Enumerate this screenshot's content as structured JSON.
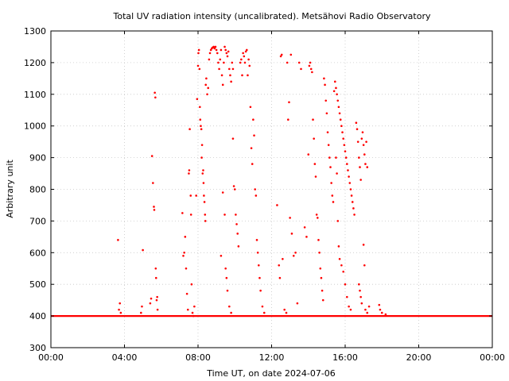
{
  "chart_data": {
    "type": "scatter",
    "title": "Total UV radiation intensity (uncalibrated). Metsähovi Radio Observatory",
    "xlabel": "Time UT, on date 2024-07-06",
    "ylabel": "Arbitrary unit",
    "xlim": [
      0,
      24
    ],
    "ylim": [
      300,
      1300
    ],
    "xticks": [
      0,
      4,
      8,
      12,
      16,
      20,
      24
    ],
    "xtick_labels": [
      "00:00",
      "04:00",
      "08:00",
      "12:00",
      "16:00",
      "20:00",
      "00:00"
    ],
    "yticks": [
      300,
      400,
      500,
      600,
      700,
      800,
      900,
      1000,
      1100,
      1200,
      1300
    ],
    "ytick_labels": [
      "300",
      "400",
      "500",
      "600",
      "700",
      "800",
      "900",
      "1000",
      "1100",
      "1200",
      "1300"
    ],
    "grid": true,
    "color": "#ff0000",
    "baseline": 400,
    "points": [
      [
        3.65,
        640
      ],
      [
        3.7,
        420
      ],
      [
        3.75,
        440
      ],
      [
        3.8,
        410
      ],
      [
        4.9,
        410
      ],
      [
        4.95,
        430
      ],
      [
        5.0,
        608
      ],
      [
        5.4,
        440
      ],
      [
        5.45,
        455
      ],
      [
        5.5,
        905
      ],
      [
        5.55,
        820
      ],
      [
        5.6,
        745
      ],
      [
        5.62,
        735
      ],
      [
        5.65,
        1105
      ],
      [
        5.68,
        1090
      ],
      [
        5.7,
        550
      ],
      [
        5.72,
        520
      ],
      [
        5.75,
        450
      ],
      [
        5.78,
        460
      ],
      [
        5.8,
        420
      ],
      [
        7.15,
        725
      ],
      [
        7.2,
        590
      ],
      [
        7.25,
        600
      ],
      [
        7.3,
        650
      ],
      [
        7.35,
        550
      ],
      [
        7.4,
        470
      ],
      [
        7.45,
        420
      ],
      [
        7.5,
        850
      ],
      [
        7.52,
        860
      ],
      [
        7.55,
        990
      ],
      [
        7.6,
        780
      ],
      [
        7.62,
        720
      ],
      [
        7.65,
        500
      ],
      [
        7.7,
        410
      ],
      [
        7.75,
        400
      ],
      [
        7.8,
        430
      ],
      [
        7.9,
        780
      ],
      [
        7.95,
        1085
      ],
      [
        8.0,
        1190
      ],
      [
        8.02,
        1230
      ],
      [
        8.05,
        1240
      ],
      [
        8.08,
        1180
      ],
      [
        8.1,
        1060
      ],
      [
        8.12,
        1020
      ],
      [
        8.15,
        1000
      ],
      [
        8.18,
        990
      ],
      [
        8.2,
        900
      ],
      [
        8.22,
        940
      ],
      [
        8.25,
        850
      ],
      [
        8.28,
        860
      ],
      [
        8.3,
        820
      ],
      [
        8.32,
        780
      ],
      [
        8.35,
        760
      ],
      [
        8.38,
        720
      ],
      [
        8.4,
        700
      ],
      [
        8.42,
        1130
      ],
      [
        8.45,
        1150
      ],
      [
        8.5,
        1100
      ],
      [
        8.55,
        1120
      ],
      [
        8.6,
        1210
      ],
      [
        8.65,
        1230
      ],
      [
        8.7,
        1240
      ],
      [
        8.75,
        1245
      ],
      [
        8.8,
        1248
      ],
      [
        8.85,
        1250
      ],
      [
        8.9,
        1245
      ],
      [
        8.95,
        1250
      ],
      [
        9.0,
        1240
      ],
      [
        9.05,
        1230
      ],
      [
        9.1,
        1200
      ],
      [
        9.15,
        1180
      ],
      [
        9.2,
        1210
      ],
      [
        9.25,
        1240
      ],
      [
        9.3,
        1160
      ],
      [
        9.35,
        1130
      ],
      [
        9.4,
        1200
      ],
      [
        9.45,
        1250
      ],
      [
        9.5,
        1240
      ],
      [
        9.55,
        1230
      ],
      [
        9.6,
        1220
      ],
      [
        9.65,
        1235
      ],
      [
        9.7,
        1180
      ],
      [
        9.75,
        1160
      ],
      [
        9.8,
        1140
      ],
      [
        9.85,
        1200
      ],
      [
        9.9,
        1180
      ],
      [
        9.25,
        590
      ],
      [
        9.35,
        790
      ],
      [
        9.45,
        720
      ],
      [
        9.5,
        550
      ],
      [
        9.55,
        520
      ],
      [
        9.6,
        480
      ],
      [
        9.7,
        430
      ],
      [
        9.8,
        410
      ],
      [
        9.9,
        960
      ],
      [
        9.95,
        810
      ],
      [
        10.0,
        800
      ],
      [
        10.05,
        720
      ],
      [
        10.1,
        690
      ],
      [
        10.15,
        660
      ],
      [
        10.2,
        620
      ],
      [
        10.3,
        1200
      ],
      [
        10.35,
        1210
      ],
      [
        10.4,
        1160
      ],
      [
        10.45,
        1230
      ],
      [
        10.5,
        1220
      ],
      [
        10.55,
        1200
      ],
      [
        10.6,
        1235
      ],
      [
        10.65,
        1240
      ],
      [
        10.7,
        1160
      ],
      [
        10.75,
        1210
      ],
      [
        10.8,
        1190
      ],
      [
        10.85,
        1060
      ],
      [
        10.9,
        930
      ],
      [
        10.95,
        880
      ],
      [
        11.0,
        1020
      ],
      [
        11.05,
        970
      ],
      [
        11.1,
        800
      ],
      [
        11.15,
        780
      ],
      [
        11.2,
        640
      ],
      [
        11.25,
        600
      ],
      [
        11.3,
        560
      ],
      [
        11.35,
        520
      ],
      [
        11.4,
        480
      ],
      [
        11.5,
        430
      ],
      [
        11.6,
        410
      ],
      [
        12.3,
        750
      ],
      [
        12.4,
        560
      ],
      [
        12.45,
        520
      ],
      [
        12.5,
        1220
      ],
      [
        12.55,
        1225
      ],
      [
        12.6,
        580
      ],
      [
        12.7,
        420
      ],
      [
        12.8,
        410
      ],
      [
        12.85,
        1200
      ],
      [
        12.9,
        1020
      ],
      [
        12.95,
        1075
      ],
      [
        13.0,
        710
      ],
      [
        13.05,
        1225
      ],
      [
        13.1,
        660
      ],
      [
        13.2,
        590
      ],
      [
        13.3,
        600
      ],
      [
        13.4,
        440
      ],
      [
        13.5,
        1200
      ],
      [
        13.6,
        1180
      ],
      [
        13.8,
        680
      ],
      [
        13.9,
        650
      ],
      [
        14.0,
        910
      ],
      [
        14.05,
        1190
      ],
      [
        14.1,
        1200
      ],
      [
        14.15,
        1180
      ],
      [
        14.2,
        1170
      ],
      [
        14.25,
        1020
      ],
      [
        14.3,
        960
      ],
      [
        14.35,
        880
      ],
      [
        14.4,
        840
      ],
      [
        14.45,
        720
      ],
      [
        14.5,
        710
      ],
      [
        14.55,
        640
      ],
      [
        14.6,
        600
      ],
      [
        14.65,
        550
      ],
      [
        14.7,
        520
      ],
      [
        14.75,
        480
      ],
      [
        14.8,
        450
      ],
      [
        14.85,
        1150
      ],
      [
        14.9,
        1130
      ],
      [
        14.95,
        1080
      ],
      [
        15.0,
        1040
      ],
      [
        15.05,
        980
      ],
      [
        15.1,
        940
      ],
      [
        15.15,
        900
      ],
      [
        15.2,
        870
      ],
      [
        15.25,
        820
      ],
      [
        15.3,
        780
      ],
      [
        15.35,
        760
      ],
      [
        15.4,
        1110
      ],
      [
        15.45,
        1140
      ],
      [
        15.5,
        1120
      ],
      [
        15.55,
        1100
      ],
      [
        15.6,
        1080
      ],
      [
        15.65,
        1060
      ],
      [
        15.7,
        1040
      ],
      [
        15.75,
        1020
      ],
      [
        15.8,
        1000
      ],
      [
        15.85,
        980
      ],
      [
        15.9,
        960
      ],
      [
        15.95,
        940
      ],
      [
        16.0,
        920
      ],
      [
        16.05,
        900
      ],
      [
        16.1,
        880
      ],
      [
        16.15,
        860
      ],
      [
        16.2,
        840
      ],
      [
        16.25,
        820
      ],
      [
        16.3,
        800
      ],
      [
        16.35,
        780
      ],
      [
        16.4,
        760
      ],
      [
        16.45,
        740
      ],
      [
        16.5,
        720
      ],
      [
        15.5,
        900
      ],
      [
        15.55,
        850
      ],
      [
        15.6,
        700
      ],
      [
        15.65,
        620
      ],
      [
        15.7,
        580
      ],
      [
        15.8,
        560
      ],
      [
        15.9,
        540
      ],
      [
        16.0,
        500
      ],
      [
        16.1,
        460
      ],
      [
        16.2,
        430
      ],
      [
        16.3,
        420
      ],
      [
        16.6,
        1010
      ],
      [
        16.65,
        990
      ],
      [
        16.7,
        950
      ],
      [
        16.75,
        900
      ],
      [
        16.8,
        870
      ],
      [
        16.85,
        830
      ],
      [
        16.9,
        960
      ],
      [
        16.95,
        980
      ],
      [
        17.0,
        940
      ],
      [
        17.05,
        910
      ],
      [
        17.1,
        880
      ],
      [
        17.15,
        950
      ],
      [
        17.2,
        870
      ],
      [
        16.75,
        500
      ],
      [
        16.8,
        480
      ],
      [
        16.85,
        460
      ],
      [
        16.9,
        440
      ],
      [
        17.0,
        625
      ],
      [
        17.05,
        560
      ],
      [
        17.1,
        420
      ],
      [
        17.2,
        410
      ],
      [
        17.3,
        430
      ],
      [
        17.85,
        435
      ],
      [
        17.9,
        420
      ],
      [
        18.0,
        410
      ],
      [
        18.2,
        405
      ]
    ]
  }
}
